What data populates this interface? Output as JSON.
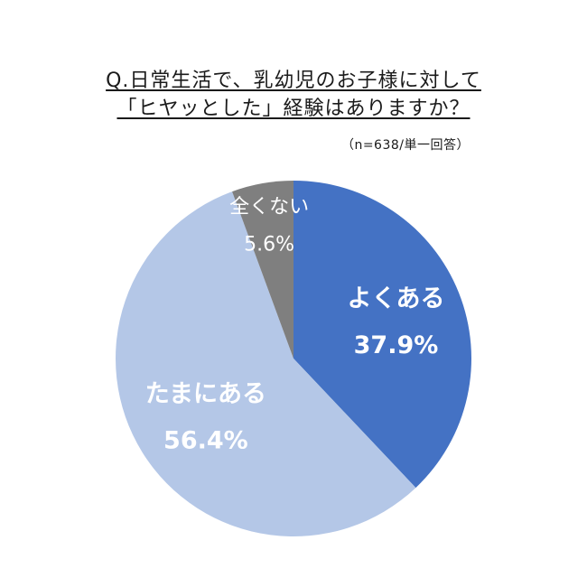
{
  "title_line1": "Q.日常生活で、乳幼児のお子様に対して",
  "title_line2": "「ヒヤッとした」経験はありますか？",
  "note": "（n=638/単一回答）",
  "chart_data": {
    "type": "pie",
    "start": "12 o'clock",
    "direction": "clockwise",
    "slices": [
      {
        "label": "よくある",
        "value": 37.9,
        "value_label": "37.9%",
        "color": "#4472c4",
        "label_color": "#ffffff"
      },
      {
        "label": "たまにある",
        "value": 56.4,
        "value_label": "56.4%",
        "color": "#b4c7e7",
        "label_color": "#ffffff"
      },
      {
        "label": "全くない",
        "value": 5.6,
        "value_label": "5.6%",
        "color": "#7f7f7f",
        "label_color": "#ffffff"
      }
    ]
  }
}
